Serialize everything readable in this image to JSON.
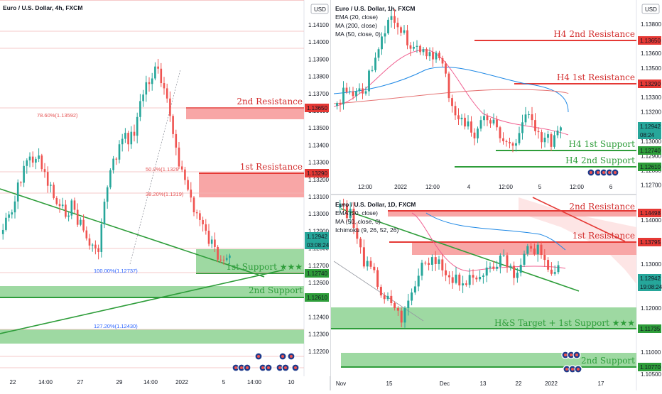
{
  "panes": {
    "left": {
      "title": "Euro / U.S. Dollar, 4h, FXCM",
      "currency": "USD",
      "price_ticks": [
        "1.14100",
        "1.14000",
        "1.13900",
        "1.13800",
        "1.13700",
        "1.13600",
        "1.13500",
        "1.13400",
        "1.13300",
        "1.13200",
        "1.13100",
        "1.13000",
        "1.12900",
        "1.12800",
        "1.12700",
        "1.12600",
        "1.12500",
        "1.12400",
        "1.12300",
        "1.12200"
      ],
      "time_ticks": [
        "22",
        "14:00",
        "27",
        "29",
        "14:00",
        "2022",
        "5",
        "14:00",
        "10"
      ],
      "zone_labels": {
        "r2": "2nd Resistance",
        "r1": "1st Resistance",
        "s1": "1st Support ★★★",
        "s2": "2nd Support"
      },
      "price_tags": {
        "r2": "1.13650",
        "r1": "1.13290",
        "current": "1.12942",
        "countdown": "03:08:24",
        "s1": "1.12740",
        "s2": "1.12610"
      },
      "fib_labels": [
        "78.60%(1.13592)",
        "50.0%(1.1329",
        "38.20%(1.1319)",
        "100.00%(1.12737)",
        "127.20%(1.12430)"
      ]
    },
    "top_right": {
      "title": "Euro / U.S. Dollar, 1h, FXCM",
      "currency": "USD",
      "indicators": [
        "EMA (20, close)",
        "MA (200, close)",
        "MA (50, close, 0)"
      ],
      "price_ticks": [
        "1.13800",
        "1.13700",
        "1.13600",
        "1.13500",
        "1.13400",
        "1.13300",
        "1.13200",
        "1.13100",
        "1.13000",
        "1.12900",
        "1.12800",
        "1.12700"
      ],
      "time_ticks": [
        "12:00",
        "2022",
        "12:00",
        "4",
        "12:00",
        "5",
        "12:00",
        "6"
      ],
      "zone_labels": {
        "r2": "H4 2nd Resistance",
        "r1": "H4 1st Resistance",
        "s1": "H4 1st Support",
        "s2": "H4 2nd Support"
      },
      "price_tags": {
        "r2": "1.13650",
        "r1": "1.13290",
        "current": "1.12942",
        "countdown": "08:24",
        "s1": "1.12740",
        "s2": "1.12610"
      }
    },
    "bottom_right": {
      "title": "Euro / U.S. Dollar, 1D, FXCM",
      "indicators": [
        "EMA (20, close)",
        "MA (50, close, 0)",
        "Ichimoku (9, 26, 52, 26)"
      ],
      "price_ticks": [
        "1.14000",
        "1.13500",
        "1.13000",
        "1.12500",
        "1.12000",
        "1.11500",
        "1.11000",
        "1.10500"
      ],
      "time_ticks": [
        "Nov",
        "15",
        "Dec",
        "13",
        "22",
        "2022",
        "17"
      ],
      "zone_labels": {
        "r2": "2nd Resistance",
        "r1": "1st Resistance",
        "s1": "H&S Target + 1st Support ★★★",
        "s2": "2nd Support"
      },
      "price_tags": {
        "r2": "1.14498",
        "r1": "1.13795",
        "current": "1.12942",
        "countdown": "19:08:24",
        "s1": "1.11735",
        "s2": "1.10770"
      }
    }
  },
  "colors": {
    "bull": "#26a69a",
    "bear": "#ef5350",
    "resistance_zone": "#f8a6a6",
    "support_zone": "#9ed9a2",
    "resistance_line": "#e53935",
    "support_line": "#2e9d3a",
    "ema": "#f06292",
    "ma50": "#1e88e5",
    "ma200": "#e57373"
  }
}
